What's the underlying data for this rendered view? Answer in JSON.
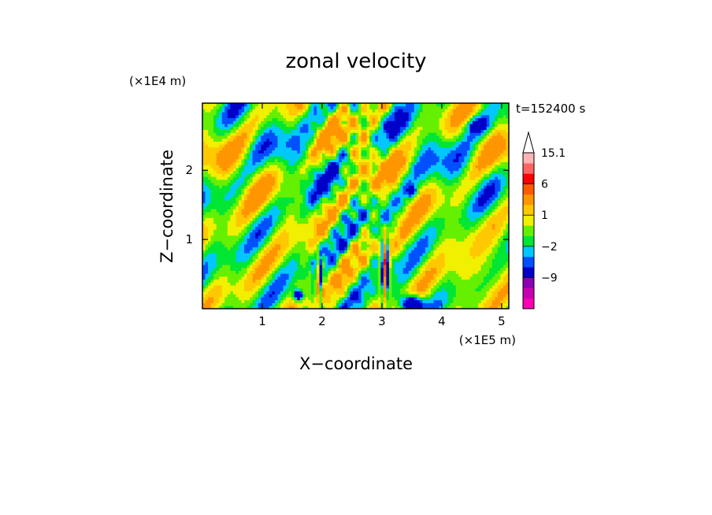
{
  "chart_data": {
    "type": "heatmap",
    "title": "zonal velocity",
    "xlabel": "X−coordinate",
    "ylabel": "Z−coordinate",
    "x_unit_label": "(×1E5 m)",
    "y_unit_label": "(×1E4 m)",
    "time_label": "t=152400 s",
    "xlim": [
      0,
      5.12
    ],
    "ylim": [
      0,
      2.97
    ],
    "xticks": [
      "1",
      "2",
      "3",
      "4",
      "5"
    ],
    "yticks": [
      "1",
      "2"
    ],
    "xtick_values": [
      1,
      2,
      3,
      4,
      5
    ],
    "ytick_values": [
      1,
      2
    ],
    "colorbar": {
      "levels": [
        -15,
        -12,
        -9,
        -6,
        -3,
        -2,
        -1,
        0,
        1,
        2,
        3,
        6,
        9,
        12,
        15.1
      ],
      "colors": [
        "#ff00b4",
        "#c800b4",
        "#8c00b4",
        "#0000c8",
        "#0050ff",
        "#00c8ff",
        "#00e632",
        "#64f000",
        "#f0f000",
        "#ffc800",
        "#ff9600",
        "#ff5a00",
        "#ff0000",
        "#ff6464",
        "#ffb4b4"
      ],
      "extend_color": "#ffffff",
      "labels": [
        "15.1",
        "6",
        "1",
        "−2",
        "−9"
      ],
      "label_values": [
        15.1,
        6,
        1,
        -2,
        -9
      ]
    }
  }
}
